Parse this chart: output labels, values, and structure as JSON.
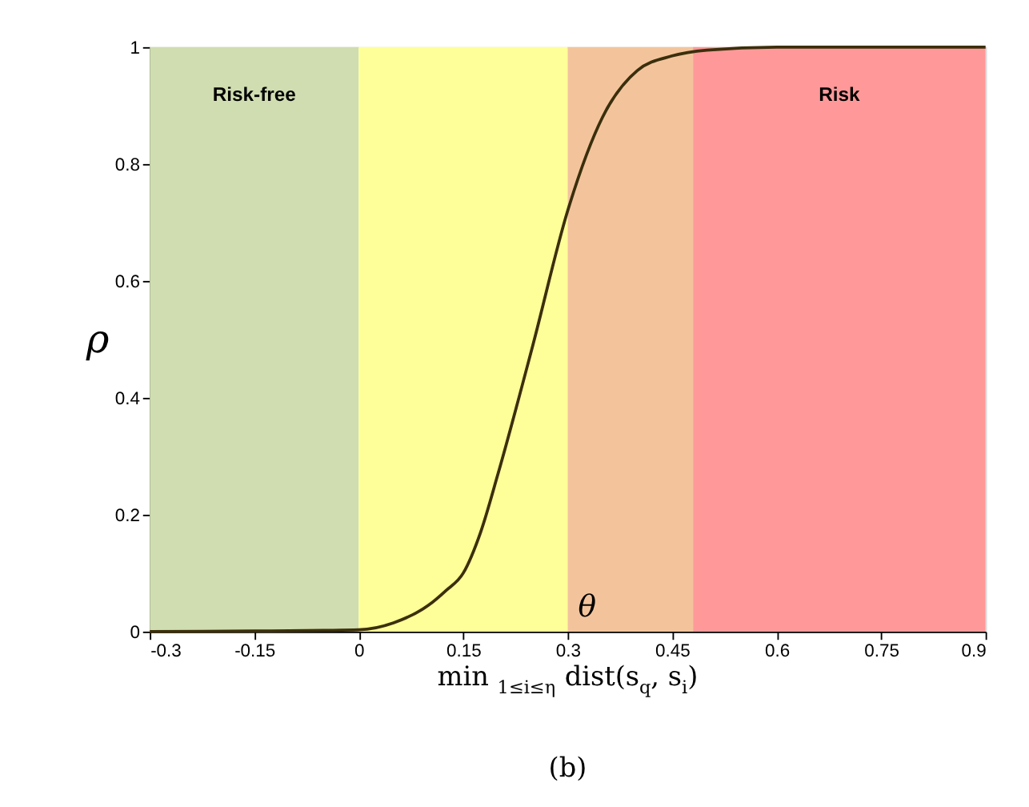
{
  "chart_data": {
    "type": "line",
    "xlabel": "min $_{1≤i≤η}$ dist(s$_{q}$, s$_{i}$)",
    "ylabel": "ρ",
    "x": [
      -0.3,
      -0.15,
      -0.05,
      0,
      0.05,
      0.1,
      0.125,
      0.15,
      0.175,
      0.2,
      0.25,
      0.3,
      0.35,
      0.4,
      0.45,
      0.5,
      0.6,
      0.75,
      0.9
    ],
    "series": [
      {
        "color": "#3b2f0c",
        "values": [
          0,
          0.001,
          0.002,
          0.003,
          0.015,
          0.045,
          0.07,
          0.1,
          0.17,
          0.27,
          0.49,
          0.72,
          0.88,
          0.96,
          0.985,
          0.995,
          1,
          1,
          1
        ]
      }
    ],
    "xlim": [
      -0.3,
      0.9
    ],
    "xticks": [
      -0.3,
      -0.15,
      0,
      0.15,
      0.3,
      0.45,
      0.6,
      0.75,
      0.9
    ],
    "ylim": [
      0,
      1
    ],
    "yticks": [
      0,
      0.2,
      0.4,
      0.6,
      0.8,
      1
    ],
    "bands": [
      {
        "axis": "x",
        "from": -0.3,
        "to": 0,
        "label": "Risk-free",
        "color": "#d0ddb0"
      },
      {
        "axis": "x",
        "from": 0,
        "to": 0.3,
        "color": "#ffff99"
      },
      {
        "axis": "x",
        "from": 0.3,
        "to": 0.48,
        "color": "#f3c49c"
      },
      {
        "axis": "x",
        "from": 0.48,
        "to": 0.9,
        "label": "Risk",
        "color": "#ff9999"
      }
    ],
    "annotations": [
      "θ",
      "(b)"
    ],
    "grid": false,
    "legend": false
  }
}
